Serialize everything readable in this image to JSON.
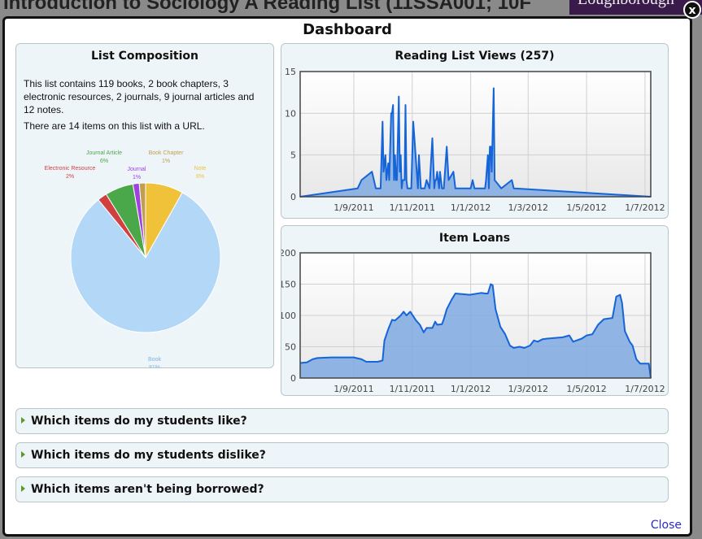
{
  "background": {
    "page_title": "Introduction to Sociology A Reading List (11SSA001; 10F",
    "logo_text": "Loughborough"
  },
  "modal": {
    "title": "Dashboard",
    "close_icon": "close-x-icon",
    "close_label": "Close"
  },
  "composition": {
    "title": "List Composition",
    "summary": "This list contains 119 books, 2 book chapters, 3 electronic resources, 2 journals, 9 journal articles and 12 notes.",
    "url_note": "There are 14 items on this list with a URL."
  },
  "chart_data": [
    {
      "type": "pie",
      "title": "",
      "slices": [
        {
          "label": "Note",
          "value": 12,
          "pct": "8%",
          "color": "#f0c23a"
        },
        {
          "label": "Book",
          "value": 119,
          "pct": "81%",
          "color": "#b3d8f7"
        },
        {
          "label": "Electronic Resource",
          "value": 3,
          "pct": "2%",
          "color": "#d04040"
        },
        {
          "label": "Journal Article",
          "value": 9,
          "pct": "6%",
          "color": "#4aa84a"
        },
        {
          "label": "Journal",
          "value": 2,
          "pct": "1%",
          "color": "#a040e0"
        },
        {
          "label": "Book Chapter",
          "value": 2,
          "pct": "1%",
          "color": "#c0a050"
        }
      ]
    },
    {
      "type": "area",
      "title": "Reading List Views (257)",
      "ylim": [
        0,
        15
      ],
      "yticks": [
        0,
        5,
        10,
        15
      ],
      "xlim": [
        "2011-07-07",
        "2012-07-07"
      ],
      "xticks": [
        {
          "date": "2011-09-01",
          "label": "1/9/2011"
        },
        {
          "date": "2011-11-01",
          "label": "1/11/2011"
        },
        {
          "date": "2012-01-01",
          "label": "1/1/2012"
        },
        {
          "date": "2012-03-01",
          "label": "1/3/2012"
        },
        {
          "date": "2012-05-01",
          "label": "1/5/2012"
        },
        {
          "date": "2012-07-01",
          "label": "1/7/2012"
        }
      ],
      "grid": true,
      "color": "#1565d8",
      "points": [
        [
          "2011-07-07",
          0
        ],
        [
          "2011-09-05",
          1
        ],
        [
          "2011-09-09",
          2
        ],
        [
          "2011-09-20",
          3
        ],
        [
          "2011-09-24",
          1
        ],
        [
          "2011-09-29",
          1
        ],
        [
          "2011-10-01",
          9
        ],
        [
          "2011-10-02",
          3
        ],
        [
          "2011-10-04",
          5
        ],
        [
          "2011-10-05",
          2
        ],
        [
          "2011-10-07",
          4
        ],
        [
          "2011-10-08",
          2
        ],
        [
          "2011-10-10",
          10
        ],
        [
          "2011-10-11",
          10
        ],
        [
          "2011-10-12",
          11
        ],
        [
          "2011-10-13",
          2
        ],
        [
          "2011-10-14",
          5
        ],
        [
          "2011-10-15",
          2
        ],
        [
          "2011-10-16",
          2
        ],
        [
          "2011-10-18",
          12
        ],
        [
          "2011-10-19",
          3
        ],
        [
          "2011-10-20",
          5
        ],
        [
          "2011-10-21",
          1
        ],
        [
          "2011-10-22",
          2
        ],
        [
          "2011-10-24",
          2
        ],
        [
          "2011-10-25",
          11
        ],
        [
          "2011-10-26",
          2
        ],
        [
          "2011-10-27",
          1
        ],
        [
          "2011-10-31",
          1
        ],
        [
          "2011-11-02",
          9
        ],
        [
          "2011-11-07",
          1
        ],
        [
          "2011-11-08",
          5
        ],
        [
          "2011-11-10",
          1
        ],
        [
          "2011-11-14",
          1
        ],
        [
          "2011-11-16",
          2
        ],
        [
          "2011-11-19",
          1
        ],
        [
          "2011-11-22",
          7
        ],
        [
          "2011-11-24",
          1
        ],
        [
          "2011-11-25",
          2
        ],
        [
          "2011-11-26",
          2
        ],
        [
          "2011-11-27",
          3
        ],
        [
          "2011-11-29",
          1
        ],
        [
          "2011-11-30",
          3
        ],
        [
          "2011-12-02",
          1
        ],
        [
          "2011-12-04",
          1
        ],
        [
          "2011-12-07",
          6
        ],
        [
          "2011-12-09",
          2
        ],
        [
          "2011-12-14",
          3
        ],
        [
          "2011-12-16",
          1
        ],
        [
          "2012-01-01",
          1
        ],
        [
          "2012-01-03",
          2
        ],
        [
          "2012-01-05",
          1
        ],
        [
          "2012-01-16",
          1
        ],
        [
          "2012-01-17",
          2
        ],
        [
          "2012-01-19",
          5
        ],
        [
          "2012-01-20",
          1
        ],
        [
          "2012-01-21",
          6
        ],
        [
          "2012-01-22",
          6
        ],
        [
          "2012-01-23",
          3
        ],
        [
          "2012-01-25",
          13
        ],
        [
          "2012-01-26",
          2
        ],
        [
          "2012-02-02",
          1
        ],
        [
          "2012-02-13",
          2
        ],
        [
          "2012-02-15",
          1
        ],
        [
          "2012-07-07",
          0
        ]
      ]
    },
    {
      "type": "area",
      "title": "Item Loans",
      "ylim": [
        0,
        200
      ],
      "yticks": [
        0,
        50,
        100,
        150,
        200
      ],
      "xlim": [
        "2011-07-07",
        "2012-07-07"
      ],
      "xticks": [
        {
          "date": "2011-09-01",
          "label": "1/9/2011"
        },
        {
          "date": "2011-11-01",
          "label": "1/11/2011"
        },
        {
          "date": "2012-01-01",
          "label": "1/1/2012"
        },
        {
          "date": "2012-03-01",
          "label": "1/3/2012"
        },
        {
          "date": "2012-05-01",
          "label": "1/5/2012"
        },
        {
          "date": "2012-07-01",
          "label": "1/7/2012"
        }
      ],
      "grid": true,
      "color": "#1565d8",
      "points": [
        [
          "2011-07-07",
          24
        ],
        [
          "2011-07-14",
          25
        ],
        [
          "2011-07-20",
          30
        ],
        [
          "2011-07-25",
          32
        ],
        [
          "2011-08-09",
          33
        ],
        [
          "2011-09-01",
          33
        ],
        [
          "2011-09-09",
          30
        ],
        [
          "2011-09-14",
          26
        ],
        [
          "2011-09-26",
          26
        ],
        [
          "2011-10-01",
          28
        ],
        [
          "2011-10-03",
          60
        ],
        [
          "2011-10-07",
          78
        ],
        [
          "2011-10-11",
          93
        ],
        [
          "2011-10-14",
          92
        ],
        [
          "2011-10-20",
          100
        ],
        [
          "2011-10-23",
          106
        ],
        [
          "2011-10-26",
          100
        ],
        [
          "2011-10-30",
          106
        ],
        [
          "2011-11-05",
          92
        ],
        [
          "2011-11-09",
          85
        ],
        [
          "2011-11-13",
          73
        ],
        [
          "2011-11-16",
          80
        ],
        [
          "2011-11-22",
          80
        ],
        [
          "2011-11-25",
          90
        ],
        [
          "2011-11-27",
          85
        ],
        [
          "2011-12-02",
          86
        ],
        [
          "2011-12-04",
          94
        ],
        [
          "2011-12-07",
          110
        ],
        [
          "2011-12-12",
          125
        ],
        [
          "2011-12-16",
          135
        ],
        [
          "2011-12-31",
          133
        ],
        [
          "2012-01-12",
          136
        ],
        [
          "2012-01-16",
          135
        ],
        [
          "2012-01-19",
          135
        ],
        [
          "2012-01-22",
          150
        ],
        [
          "2012-01-24",
          148
        ],
        [
          "2012-01-27",
          110
        ],
        [
          "2012-02-01",
          82
        ],
        [
          "2012-02-06",
          70
        ],
        [
          "2012-02-11",
          52
        ],
        [
          "2012-02-15",
          48
        ],
        [
          "2012-02-21",
          50
        ],
        [
          "2012-02-26",
          48
        ],
        [
          "2012-03-03",
          52
        ],
        [
          "2012-03-07",
          60
        ],
        [
          "2012-03-11",
          58
        ],
        [
          "2012-03-16",
          62
        ],
        [
          "2012-03-21",
          63
        ],
        [
          "2012-04-06",
          65
        ],
        [
          "2012-04-13",
          68
        ],
        [
          "2012-04-17",
          58
        ],
        [
          "2012-04-26",
          63
        ],
        [
          "2012-05-01",
          68
        ],
        [
          "2012-05-07",
          70
        ],
        [
          "2012-05-13",
          85
        ],
        [
          "2012-05-19",
          94
        ],
        [
          "2012-05-28",
          96
        ],
        [
          "2012-06-01",
          130
        ],
        [
          "2012-06-05",
          133
        ],
        [
          "2012-06-07",
          120
        ],
        [
          "2012-06-10",
          75
        ],
        [
          "2012-06-15",
          58
        ],
        [
          "2012-06-18",
          52
        ],
        [
          "2012-06-22",
          30
        ],
        [
          "2012-06-26",
          23
        ],
        [
          "2012-07-05",
          23
        ],
        [
          "2012-07-07",
          0
        ]
      ]
    }
  ],
  "accordions": [
    {
      "label": "Which items do my students like?"
    },
    {
      "label": "Which items do my students dislike?"
    },
    {
      "label": "Which items aren't being borrowed?"
    }
  ]
}
